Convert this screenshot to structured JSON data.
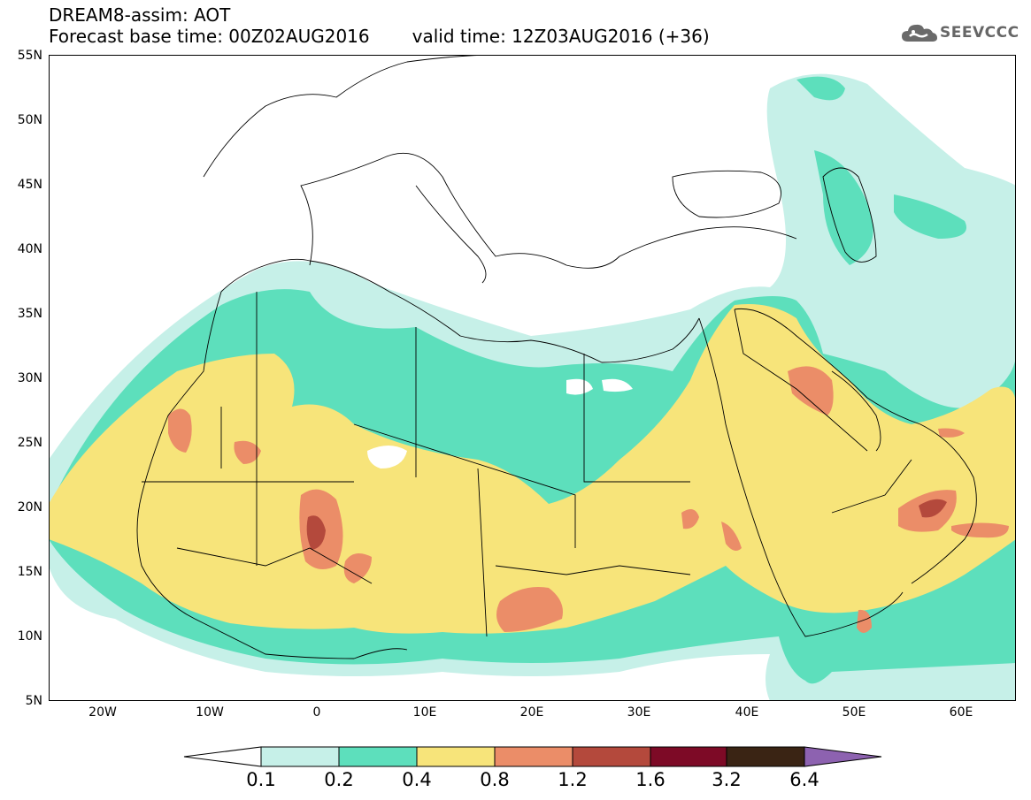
{
  "header": {
    "title": "DREAM8-assim: AOT",
    "base_time": "Forecast base time: 00Z02AUG2016",
    "valid_time": "valid time: 12Z03AUG2016 (+36)"
  },
  "logo": {
    "text": "SEEVCCC",
    "icon": "cloud-icon",
    "color": "#666666"
  },
  "map": {
    "lat_labels": [
      "55N",
      "50N",
      "45N",
      "40N",
      "35N",
      "30N",
      "25N",
      "20N",
      "15N",
      "10N",
      "5N"
    ],
    "lon_labels": [
      "20W",
      "10W",
      "0",
      "10E",
      "20E",
      "30E",
      "40E",
      "50E",
      "60E"
    ],
    "lat_range": [
      5,
      55
    ],
    "lon_range": [
      -25,
      65
    ]
  },
  "colorbar": {
    "labels": [
      "0.1",
      "0.2",
      "0.4",
      "0.8",
      "1.2",
      "1.6",
      "3.2",
      "6.4"
    ],
    "colors": [
      "#ffffff",
      "#c6f0e8",
      "#5ddfbc",
      "#f7e47a",
      "#eb8d68",
      "#b4493c",
      "#7d0a26",
      "#3a2414",
      "#8d62b0"
    ]
  }
}
